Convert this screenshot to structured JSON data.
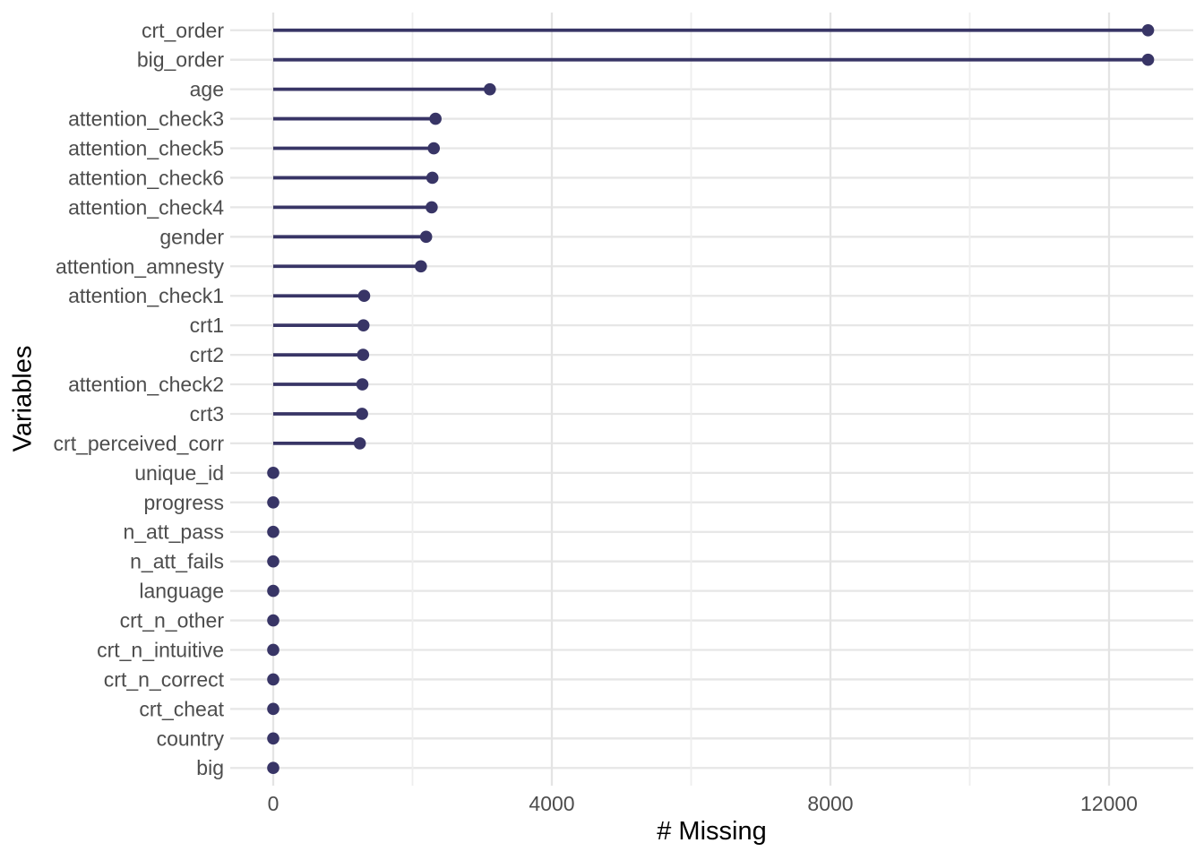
{
  "chart_data": {
    "type": "bar",
    "variant": "lollipop",
    "orientation": "horizontal",
    "title": "",
    "xlabel": "# Missing",
    "ylabel": "Variables",
    "categories": [
      "crt_order",
      "big_order",
      "age",
      "attention_check3",
      "attention_check5",
      "attention_check6",
      "attention_check4",
      "gender",
      "attention_amnesty",
      "attention_check1",
      "crt1",
      "crt2",
      "attention_check2",
      "crt3",
      "crt_perceived_corr",
      "unique_id",
      "progress",
      "n_att_pass",
      "n_att_fails",
      "language",
      "crt_n_other",
      "crt_n_intuitive",
      "crt_n_correct",
      "crt_cheat",
      "country",
      "big"
    ],
    "values": [
      12560,
      12560,
      3110,
      2330,
      2305,
      2285,
      2275,
      2195,
      2120,
      1305,
      1295,
      1290,
      1280,
      1275,
      1243,
      0,
      0,
      0,
      0,
      0,
      0,
      0,
      0,
      0,
      0,
      0
    ],
    "x_ticks": [
      0,
      4000,
      8000,
      12000
    ],
    "x_minor_ticks": [
      2000,
      6000,
      10000
    ],
    "xlim": [
      -620,
      13220
    ],
    "grid": true,
    "legend": false,
    "colors": {
      "point": "#383566",
      "stem": "#383566",
      "grid_major": "#e4e4e4",
      "grid_minor": "#eeeeee",
      "grid_row": "#e6e6e6",
      "tick_label": "#4d4d4d",
      "axis_title": "#000000",
      "background": "#ffffff"
    }
  }
}
